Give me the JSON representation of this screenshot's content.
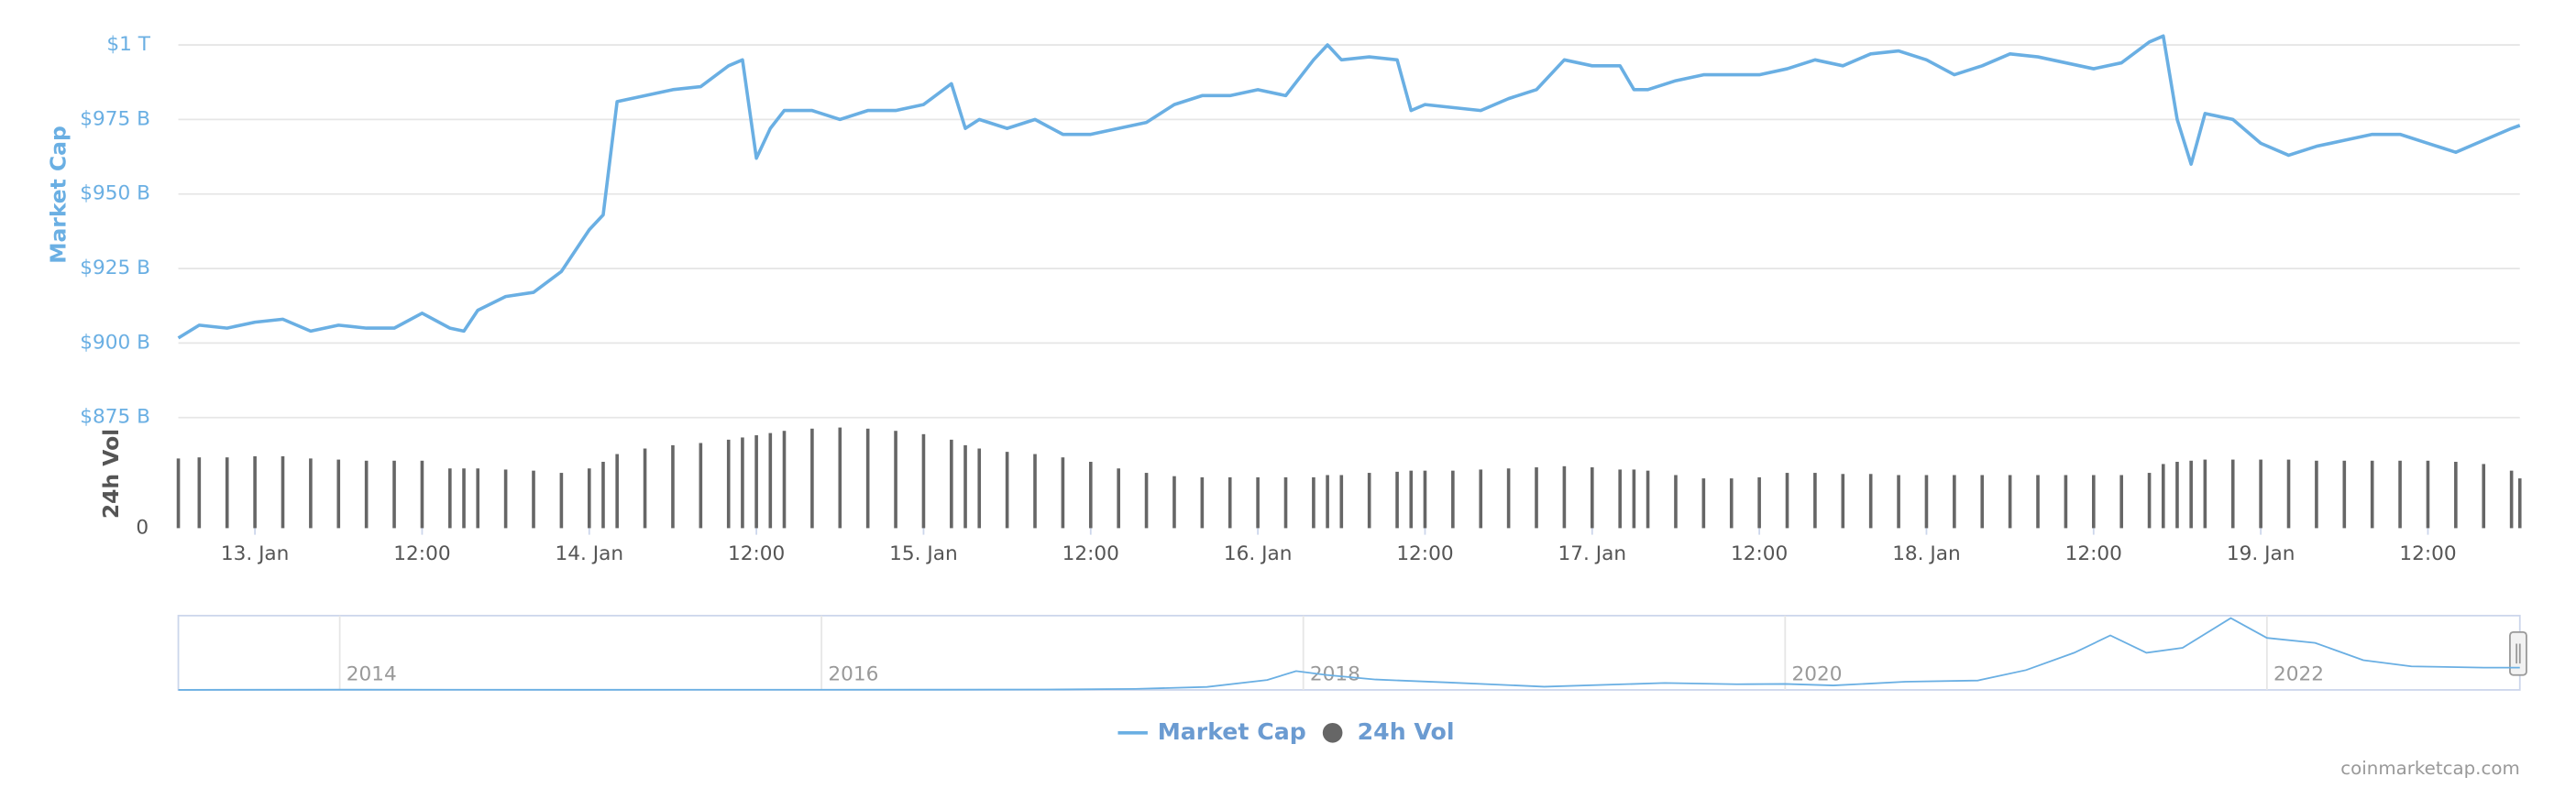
{
  "chart_data": [
    {
      "type": "line",
      "y_label": "Market Cap",
      "y2_label": "24h Vol",
      "credit": "coinmarketcap.com",
      "x": [
        -5.5,
        -4,
        -2,
        0,
        2,
        4,
        6,
        8,
        10,
        12,
        14,
        15,
        16,
        18,
        20,
        22,
        24,
        25,
        26,
        28,
        30,
        32,
        34,
        35,
        36,
        37,
        38,
        40,
        42,
        44,
        46,
        48,
        50,
        51,
        52,
        54,
        56,
        58,
        60,
        62,
        64,
        66,
        68,
        70,
        72,
        74,
        76,
        77,
        78,
        80,
        82,
        83,
        84,
        86,
        88,
        90,
        92,
        94,
        96,
        98,
        99,
        100,
        102,
        104,
        106,
        108,
        110,
        112,
        114,
        116,
        118,
        120,
        122,
        124,
        126,
        128,
        130,
        132,
        134,
        136,
        137,
        138,
        139,
        140,
        142,
        144,
        146,
        148,
        150,
        152,
        154,
        156,
        158,
        160,
        162,
        162.6
      ],
      "xlim": [
        -5.5,
        162.6
      ],
      "xticks": [
        {
          "value": 0,
          "label": "13. Jan"
        },
        {
          "value": 12,
          "label": "12:00"
        },
        {
          "value": 24,
          "label": "14. Jan"
        },
        {
          "value": 36,
          "label": "12:00"
        },
        {
          "value": 48,
          "label": "15. Jan"
        },
        {
          "value": 60,
          "label": "12:00"
        },
        {
          "value": 72,
          "label": "16. Jan"
        },
        {
          "value": 84,
          "label": "12:00"
        },
        {
          "value": 96,
          "label": "17. Jan"
        },
        {
          "value": 108,
          "label": "12:00"
        },
        {
          "value": 120,
          "label": "18. Jan"
        },
        {
          "value": 132,
          "label": "12:00"
        },
        {
          "value": 144,
          "label": "19. Jan"
        },
        {
          "value": 156,
          "label": "12:00"
        }
      ],
      "ylim": [
        875,
        1004
      ],
      "yticks": [
        {
          "value": 875,
          "label": "$875 B"
        },
        {
          "value": 900,
          "label": "$900 B"
        },
        {
          "value": 925,
          "label": "$925 B"
        },
        {
          "value": 950,
          "label": "$950 B"
        },
        {
          "value": 975,
          "label": "$975 B"
        },
        {
          "value": 1000,
          "label": "$1 T"
        }
      ],
      "y2lim": [
        0,
        100
      ],
      "y2ticks": [
        0
      ],
      "grid": true,
      "series": [
        {
          "name": "Market Cap",
          "color": "#6aafe3",
          "type": "line",
          "values": [
            901.7,
            906,
            905,
            907,
            908,
            904,
            906,
            905,
            905,
            910,
            905,
            904,
            911,
            915.6,
            917,
            924,
            938,
            943,
            981,
            983,
            985,
            986,
            993,
            995,
            962,
            972,
            978,
            978,
            975,
            978,
            978,
            980,
            987,
            972,
            975,
            972,
            975,
            970,
            970,
            972,
            974,
            980,
            983,
            983,
            985,
            983,
            995,
            1000,
            995,
            996,
            995,
            978,
            980,
            979,
            978,
            982,
            985,
            995,
            993,
            993,
            985,
            985,
            988,
            990,
            990,
            990,
            992,
            995,
            993,
            997,
            998,
            995,
            990,
            993,
            997,
            996,
            994,
            992,
            994,
            1001,
            1003,
            975,
            960,
            977,
            975,
            967,
            963,
            966,
            968,
            970,
            970,
            967,
            964,
            968,
            972,
            973
          ]
        },
        {
          "name": "24h Vol",
          "color": "#666666",
          "type": "bar",
          "axis": "y2",
          "values": [
            63,
            64,
            64,
            65,
            65,
            63,
            62,
            61,
            61,
            61,
            54,
            54,
            54,
            53,
            52,
            50,
            54,
            60,
            67,
            72,
            75,
            77,
            80,
            82,
            84,
            86,
            88,
            90,
            91,
            90,
            88,
            85,
            80,
            75,
            72,
            69,
            67,
            64,
            60,
            54,
            50,
            47,
            46,
            46,
            46,
            46,
            46,
            48,
            48,
            50,
            51,
            52,
            52,
            52,
            53,
            54,
            55,
            56,
            55,
            53,
            53,
            52,
            48,
            45,
            45,
            46,
            50,
            50,
            49,
            49,
            48,
            48,
            48,
            48,
            48,
            48,
            48,
            48,
            48,
            50,
            58,
            60,
            61,
            62,
            62,
            62,
            62,
            61,
            61,
            61,
            61,
            61,
            60,
            58,
            52,
            45
          ]
        }
      ]
    },
    {
      "type": "line",
      "x": [
        2013.33,
        2014,
        2014.5,
        2015,
        2015.5,
        2016,
        2016.5,
        2017,
        2017.3,
        2017.6,
        2017.85,
        2017.97,
        2018.1,
        2018.3,
        2018.6,
        2019,
        2019.5,
        2019.8,
        2020,
        2020.2,
        2020.5,
        2020.8,
        2021,
        2021.2,
        2021.35,
        2021.5,
        2021.65,
        2021.85,
        2022,
        2022.2,
        2022.4,
        2022.6,
        2022.9,
        2023.05
      ],
      "values": [
        1,
        10,
        8,
        5,
        6,
        7,
        10,
        18,
        40,
        120,
        400,
        760,
        600,
        420,
        300,
        130,
        280,
        230,
        240,
        180,
        330,
        380,
        800,
        1500,
        2200,
        1500,
        1700,
        2900,
        2100,
        1900,
        1200,
        950,
        900,
        900
      ],
      "xlim": [
        2013.33,
        2023.05
      ],
      "xticks": [
        2014,
        2016,
        2018,
        2020,
        2022
      ],
      "ylim": [
        0,
        3000
      ],
      "color": "#6aafe3"
    }
  ]
}
